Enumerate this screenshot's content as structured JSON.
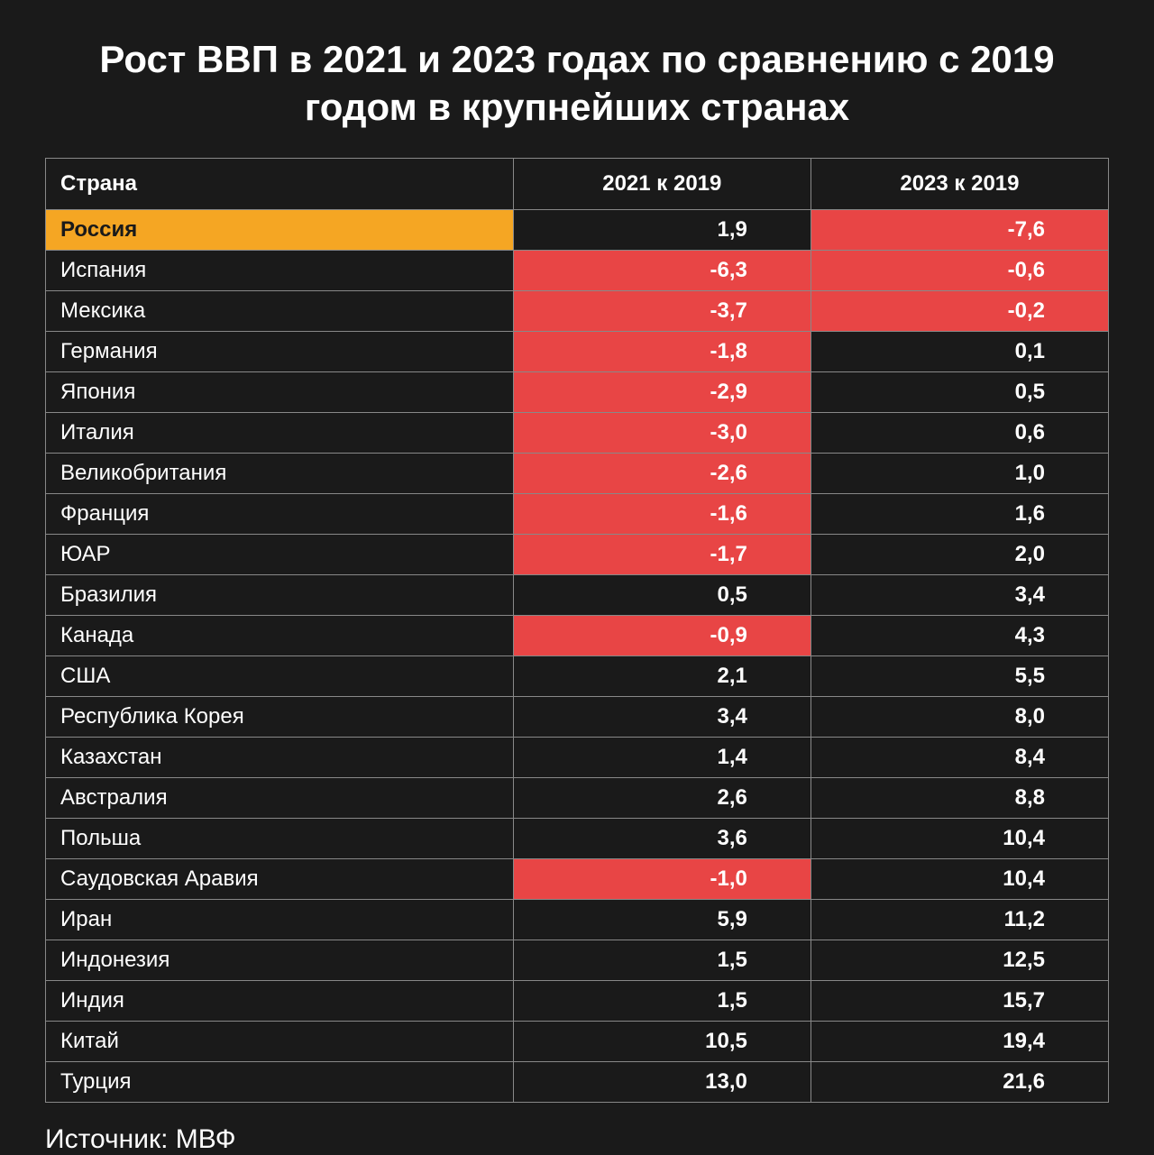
{
  "title": "Рост ВВП в 2021 и 2023 годах по сравнению с 2019 годом в крупнейших странах",
  "source": "Источник: МВФ",
  "table": {
    "type": "table",
    "columns": [
      "Страна",
      "2021 к 2019",
      "2023 к 2019"
    ],
    "column_widths_pct": [
      44,
      28,
      28
    ],
    "column_align": [
      "left",
      "right",
      "right"
    ],
    "header_fontsize": 24,
    "header_fontweight": 700,
    "cell_fontsize": 24,
    "border_color": "#888888",
    "background_color": "#1a1a1a",
    "text_color": "#ffffff",
    "highlight_row_bg": "#f5a623",
    "highlight_row_text": "#1a1a1a",
    "negative_cell_bg": "#e84545",
    "rows": [
      {
        "country": "Россия",
        "v2021": "1,9",
        "v2023": "-7,6",
        "highlight_country": true,
        "neg2021": false,
        "neg2023": true
      },
      {
        "country": "Испания",
        "v2021": "-6,3",
        "v2023": "-0,6",
        "highlight_country": false,
        "neg2021": true,
        "neg2023": true
      },
      {
        "country": "Мексика",
        "v2021": "-3,7",
        "v2023": "-0,2",
        "highlight_country": false,
        "neg2021": true,
        "neg2023": true
      },
      {
        "country": "Германия",
        "v2021": "-1,8",
        "v2023": "0,1",
        "highlight_country": false,
        "neg2021": true,
        "neg2023": false
      },
      {
        "country": "Япония",
        "v2021": "-2,9",
        "v2023": "0,5",
        "highlight_country": false,
        "neg2021": true,
        "neg2023": false
      },
      {
        "country": "Италия",
        "v2021": "-3,0",
        "v2023": "0,6",
        "highlight_country": false,
        "neg2021": true,
        "neg2023": false
      },
      {
        "country": "Великобритания",
        "v2021": "-2,6",
        "v2023": "1,0",
        "highlight_country": false,
        "neg2021": true,
        "neg2023": false
      },
      {
        "country": "Франция",
        "v2021": "-1,6",
        "v2023": "1,6",
        "highlight_country": false,
        "neg2021": true,
        "neg2023": false
      },
      {
        "country": "ЮАР",
        "v2021": "-1,7",
        "v2023": "2,0",
        "highlight_country": false,
        "neg2021": true,
        "neg2023": false
      },
      {
        "country": "Бразилия",
        "v2021": "0,5",
        "v2023": "3,4",
        "highlight_country": false,
        "neg2021": false,
        "neg2023": false
      },
      {
        "country": "Канада",
        "v2021": "-0,9",
        "v2023": "4,3",
        "highlight_country": false,
        "neg2021": true,
        "neg2023": false
      },
      {
        "country": "США",
        "v2021": "2,1",
        "v2023": "5,5",
        "highlight_country": false,
        "neg2021": false,
        "neg2023": false
      },
      {
        "country": "Республика Корея",
        "v2021": "3,4",
        "v2023": "8,0",
        "highlight_country": false,
        "neg2021": false,
        "neg2023": false
      },
      {
        "country": "Казахстан",
        "v2021": "1,4",
        "v2023": "8,4",
        "highlight_country": false,
        "neg2021": false,
        "neg2023": false
      },
      {
        "country": "Австралия",
        "v2021": "2,6",
        "v2023": "8,8",
        "highlight_country": false,
        "neg2021": false,
        "neg2023": false
      },
      {
        "country": "Польша",
        "v2021": "3,6",
        "v2023": "10,4",
        "highlight_country": false,
        "neg2021": false,
        "neg2023": false
      },
      {
        "country": "Саудовская Аравия",
        "v2021": "-1,0",
        "v2023": "10,4",
        "highlight_country": false,
        "neg2021": true,
        "neg2023": false
      },
      {
        "country": "Иран",
        "v2021": "5,9",
        "v2023": "11,2",
        "highlight_country": false,
        "neg2021": false,
        "neg2023": false
      },
      {
        "country": "Индонезия",
        "v2021": "1,5",
        "v2023": "12,5",
        "highlight_country": false,
        "neg2021": false,
        "neg2023": false
      },
      {
        "country": "Индия",
        "v2021": "1,5",
        "v2023": "15,7",
        "highlight_country": false,
        "neg2021": false,
        "neg2023": false
      },
      {
        "country": "Китай",
        "v2021": "10,5",
        "v2023": "19,4",
        "highlight_country": false,
        "neg2021": false,
        "neg2023": false
      },
      {
        "country": "Турция",
        "v2021": "13,0",
        "v2023": "21,6",
        "highlight_country": false,
        "neg2021": false,
        "neg2023": false
      }
    ]
  },
  "styling": {
    "page_bg": "#1a1a1a",
    "title_fontsize": 42,
    "title_fontweight": 800,
    "title_color": "#ffffff",
    "source_fontsize": 30,
    "source_color": "#ffffff"
  }
}
